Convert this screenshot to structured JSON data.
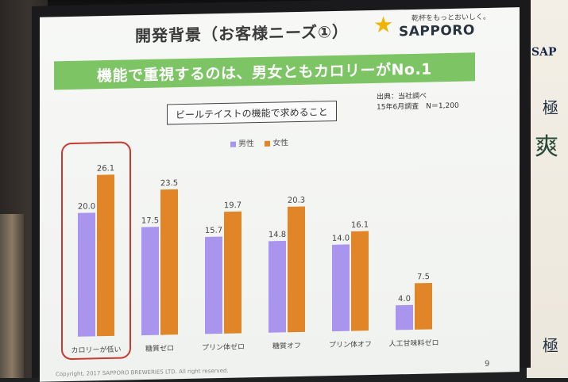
{
  "slide": {
    "title": "開発背景（お客様ニーズ①）",
    "tagline": "乾杯をもっとおいしく。",
    "logo": "SAPPORO",
    "headline": "機能で重視するのは、男女ともカロリーがNo.1",
    "subtitle": "ビールテイストの機能で求めること",
    "source_line1": "出典：当社調べ",
    "source_line2": "15年6月調査　N＝1,200",
    "footer": "Copyright, 2017 SAPPORO BREWERIES LTD. All right reserved.",
    "page_number": "9"
  },
  "colors": {
    "male": "#a994ee",
    "female": "#e08628",
    "headline_bg": "#7cc464",
    "highlight": "#c83a30",
    "star": "#f0b400"
  },
  "chart_data": {
    "type": "bar",
    "categories": [
      "カロリーが低い",
      "糖質ゼロ",
      "プリン体ゼロ",
      "糖質オフ",
      "プリン体オフ",
      "人工甘味料ゼロ"
    ],
    "series": [
      {
        "name": "男性",
        "values": [
          20.0,
          17.5,
          15.7,
          14.8,
          14.0,
          4.0
        ]
      },
      {
        "name": "女性",
        "values": [
          26.1,
          23.5,
          19.7,
          20.3,
          16.1,
          7.5
        ]
      }
    ],
    "value_labels": {
      "男性": [
        "20.0",
        "17.5",
        "15.7",
        "14.8",
        "14.0",
        "4.0"
      ],
      "女性": [
        "26.1",
        "23.5",
        "19.7",
        "20.3",
        "16.1",
        "7.5"
      ]
    },
    "title": "ビールテイストの機能で求めること",
    "xlabel": "",
    "ylabel": "",
    "ylim": [
      0,
      30
    ],
    "grid": false,
    "legend": "top-center",
    "highlighted_category": "カロリーが低い"
  },
  "banner": {
    "brand": "SAP",
    "kanji1": "極",
    "kanji2": "爽",
    "kanji3": "極"
  }
}
